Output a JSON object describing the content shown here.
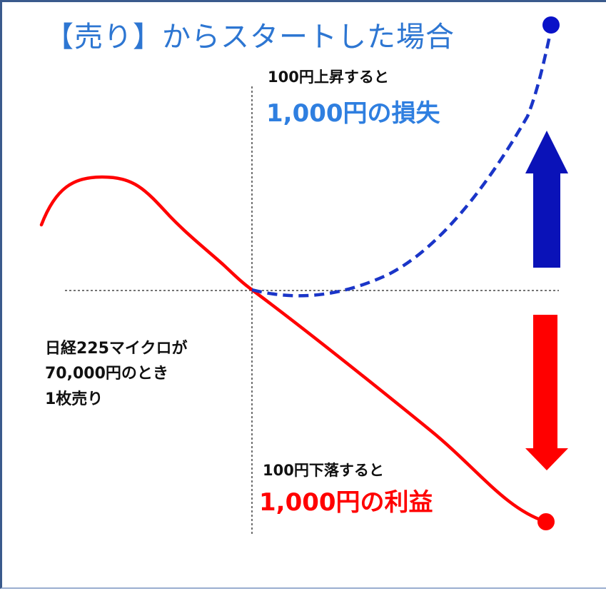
{
  "title": "【売り】からスタートした場合",
  "upper": {
    "condition": "100円上昇すると",
    "result": "1,000円の損失"
  },
  "lower": {
    "condition": "100円下落すると",
    "result": "1,000円の利益"
  },
  "position_note": {
    "line1": "日経225マイクロが",
    "line2": "70,000円のとき",
    "line3": "1枚売り"
  },
  "colors": {
    "title": "#2d76d2",
    "loss_text": "#2f7fe0",
    "loss_curve": "#1a35c8",
    "loss_arrow": "#0a12b8",
    "profit": "#ff0000",
    "frame": "#3a5a8c"
  }
}
